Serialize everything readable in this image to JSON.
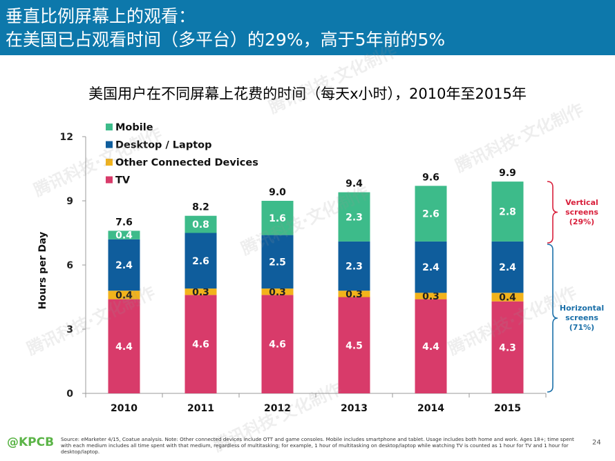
{
  "header": {
    "line1": "垂直比例屏幕上的观看：",
    "line2": "在美国已占观看时间（多平台）的29%，高于5年前的5%"
  },
  "chart_data": {
    "type": "bar",
    "stacked": true,
    "title": "美国用户在不同屏幕上花费的时间（每天x小时），2010年至2015年",
    "ylabel": "Hours per Day",
    "xlabel": "",
    "ylim": [
      0,
      12
    ],
    "yticks": [
      0,
      3,
      6,
      9,
      12
    ],
    "categories": [
      "2010",
      "2011",
      "2012",
      "2013",
      "2014",
      "2015"
    ],
    "series": [
      {
        "name": "TV",
        "color": "#d83b6a",
        "values": [
          4.4,
          4.6,
          4.6,
          4.5,
          4.4,
          4.3
        ]
      },
      {
        "name": "Other Connected Devices",
        "color": "#f2b31b",
        "values": [
          0.4,
          0.3,
          0.3,
          0.3,
          0.3,
          0.4
        ]
      },
      {
        "name": "Desktop / Laptop",
        "color": "#0f5d9c",
        "values": [
          2.4,
          2.6,
          2.5,
          2.3,
          2.4,
          2.4
        ]
      },
      {
        "name": "Mobile",
        "color": "#3dbb8a",
        "values": [
          0.4,
          0.8,
          1.6,
          2.3,
          2.6,
          2.8
        ]
      }
    ],
    "totals": [
      "7.6",
      "8.2",
      "9.0",
      "9.4",
      "9.6",
      "9.9"
    ],
    "legend": {
      "placement": "top-left",
      "order": [
        "Mobile",
        "Desktop / Laptop",
        "Other Connected Devices",
        "TV"
      ]
    },
    "grid": false,
    "annotations": [
      {
        "lines": [
          "Vertical",
          "screens",
          "(29%)"
        ],
        "color": "#d81e3a"
      },
      {
        "lines": [
          "Horizontal",
          "screens",
          "(71%)"
        ],
        "color": "#1a6fa8"
      }
    ]
  },
  "footer": {
    "logo_prefix": "@",
    "logo_text": "KPCB",
    "footnote": "Source: eMarketer 4/15, Coatue analysis. Note: Other connected devices include OTT and game consoles. Mobile includes smartphone and tablet. Usage includes both home and work. Ages 18+; time spent with each medium includes all time spent with that medium, regardless of multitasking; for example, 1 hour of multitasking on desktop/laptop while watching TV is counted as 1 hour for TV and 1 hour for desktop/laptop.",
    "page_number": "24"
  },
  "watermark": "腾讯科技·文化制作",
  "colors": {
    "header_bg": "#0d78ab",
    "brand_green": "#5bb447"
  }
}
